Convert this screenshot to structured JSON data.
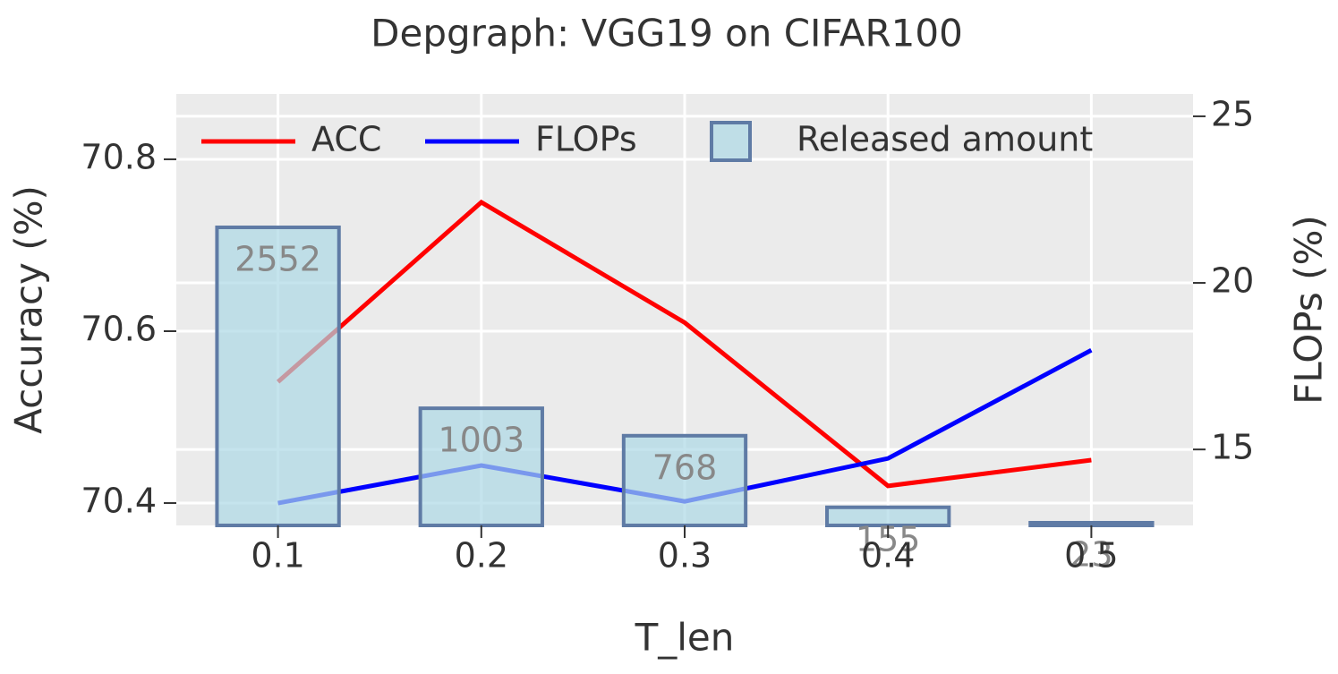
{
  "chart_data": {
    "type": "combo",
    "title": "Depgraph: VGG19 on CIFAR100",
    "x_label": "T_len",
    "y_label": "Accuracy (%)",
    "y2_label": "FLOPs (%)",
    "x": [
      0.1,
      0.2,
      0.3,
      0.4,
      0.5
    ],
    "xlim": [
      0.05,
      0.55
    ],
    "xticks": [
      0.1,
      0.2,
      0.3,
      0.4,
      0.5
    ],
    "ylim": [
      70.374,
      70.876
    ],
    "yticks": [
      70.4,
      70.6,
      70.8
    ],
    "y2lim": [
      12.72,
      25.67
    ],
    "y2ticks": [
      15,
      20,
      25
    ],
    "bar_ylim": [
      0,
      3694
    ],
    "grid": true,
    "legend": "top",
    "series": [
      {
        "name": "ACC",
        "type": "line",
        "color": "#ff0000",
        "values": [
          70.541,
          70.75,
          70.61,
          70.42,
          70.45
        ]
      },
      {
        "name": "FLOPs",
        "type": "line",
        "axis": "y2",
        "color": "#0000ff",
        "values": [
          13.39,
          14.52,
          13.44,
          14.73,
          17.98
        ]
      },
      {
        "name": "Released amount",
        "type": "bar",
        "axis": "bar",
        "color": "#add8e6",
        "edge_color": "#5f7ba5",
        "values": [
          2552,
          1003,
          768,
          155,
          23
        ]
      }
    ]
  }
}
